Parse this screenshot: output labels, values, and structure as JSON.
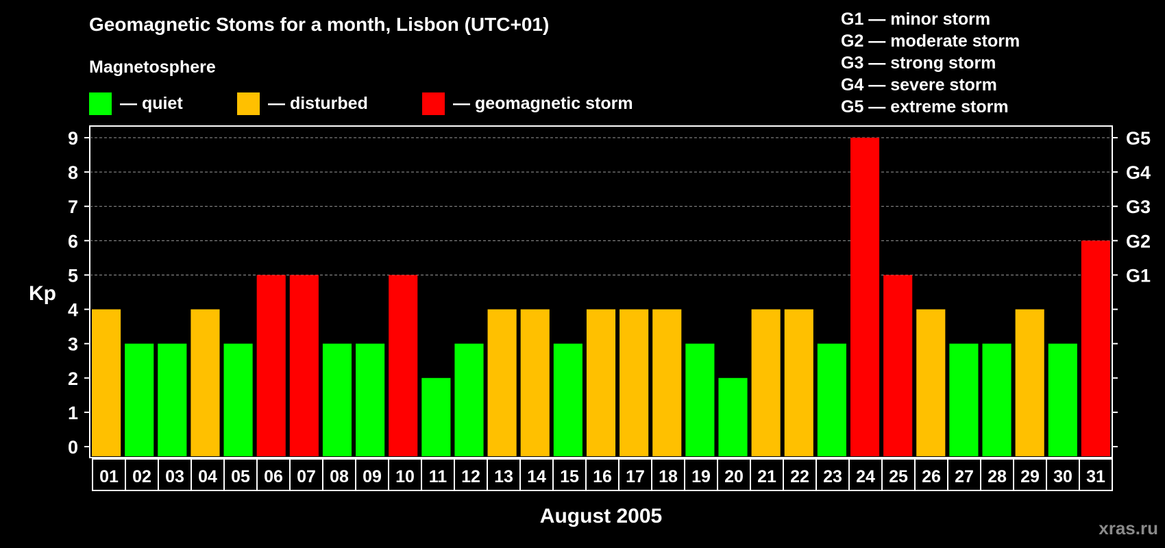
{
  "title": "Geomagnetic Stoms for a month, Lisbon (UTC+01)",
  "magnetosphere": {
    "title": "Magnetosphere",
    "items": [
      {
        "label": "— quiet",
        "color": "#00ff00"
      },
      {
        "label": "— disturbed",
        "color": "#ffc000"
      },
      {
        "label": "— geomagnetic storm",
        "color": "#ff0000"
      }
    ]
  },
  "storm_levels": [
    "G1 — minor storm",
    "G2 — moderate storm",
    "G3 — strong storm",
    "G4 — severe storm",
    "G5 — extreme storm"
  ],
  "watermark": "xras.ru",
  "chart_data": {
    "type": "bar",
    "xlabel": "August 2005",
    "ylabel": "Kp",
    "ylim": [
      0,
      9
    ],
    "y_ticks": [
      0,
      1,
      2,
      3,
      4,
      5,
      6,
      7,
      8,
      9
    ],
    "right_axis_labels": [
      {
        "y": 5,
        "label": "G1"
      },
      {
        "y": 6,
        "label": "G2"
      },
      {
        "y": 7,
        "label": "G3"
      },
      {
        "y": 8,
        "label": "G4"
      },
      {
        "y": 9,
        "label": "G5"
      }
    ],
    "grid": "horizontal dashed at 5–9",
    "categories": [
      "01",
      "02",
      "03",
      "04",
      "05",
      "06",
      "07",
      "08",
      "09",
      "10",
      "11",
      "12",
      "13",
      "14",
      "15",
      "16",
      "17",
      "18",
      "19",
      "20",
      "21",
      "22",
      "23",
      "24",
      "25",
      "26",
      "27",
      "28",
      "29",
      "30",
      "31"
    ],
    "values": [
      4,
      3,
      3,
      4,
      3,
      5,
      5,
      3,
      3,
      5,
      2,
      3,
      4,
      4,
      3,
      4,
      4,
      4,
      3,
      2,
      4,
      4,
      3,
      9,
      5,
      4,
      3,
      3,
      4,
      3,
      6
    ],
    "colors": {
      "quiet": "#00ff00",
      "disturbed": "#ffc000",
      "storm": "#ff0000"
    }
  }
}
